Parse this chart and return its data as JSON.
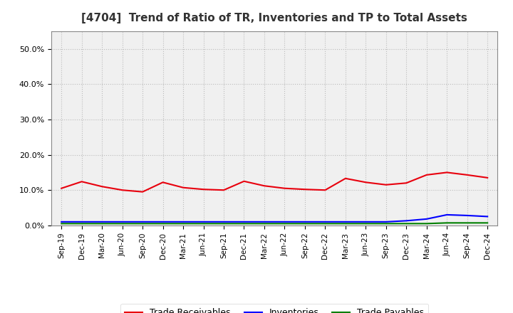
{
  "title": "[4704]  Trend of Ratio of TR, Inventories and TP to Total Assets",
  "x_labels": [
    "Sep-19",
    "Dec-19",
    "Mar-20",
    "Jun-20",
    "Sep-20",
    "Dec-20",
    "Mar-21",
    "Jun-21",
    "Sep-21",
    "Dec-21",
    "Mar-22",
    "Jun-22",
    "Sep-22",
    "Dec-22",
    "Mar-23",
    "Jun-23",
    "Sep-23",
    "Dec-23",
    "Mar-24",
    "Jun-24",
    "Sep-24",
    "Dec-24"
  ],
  "trade_receivables": [
    0.105,
    0.124,
    0.11,
    0.1,
    0.095,
    0.122,
    0.107,
    0.102,
    0.1,
    0.125,
    0.112,
    0.105,
    0.102,
    0.1,
    0.133,
    0.122,
    0.115,
    0.12,
    0.143,
    0.15,
    0.143,
    0.135
  ],
  "inventories": [
    0.01,
    0.01,
    0.01,
    0.01,
    0.01,
    0.01,
    0.01,
    0.01,
    0.01,
    0.01,
    0.01,
    0.01,
    0.01,
    0.01,
    0.01,
    0.01,
    0.01,
    0.013,
    0.018,
    0.03,
    0.028,
    0.025
  ],
  "trade_payables": [
    0.005,
    0.005,
    0.005,
    0.005,
    0.005,
    0.005,
    0.005,
    0.005,
    0.005,
    0.005,
    0.005,
    0.005,
    0.005,
    0.005,
    0.005,
    0.005,
    0.005,
    0.005,
    0.005,
    0.007,
    0.007,
    0.007
  ],
  "color_tr": "#e8000d",
  "color_inv": "#0000ff",
  "color_tp": "#008000",
  "ylim": [
    0.0,
    0.55
  ],
  "yticks": [
    0.0,
    0.1,
    0.2,
    0.3,
    0.4,
    0.5
  ],
  "legend_tr": "Trade Receivables",
  "legend_inv": "Inventories",
  "legend_tp": "Trade Payables",
  "bg_color": "#ffffff",
  "plot_bg_color": "#f0f0f0",
  "grid_color": "#bbbbbb",
  "title_color": "#333333"
}
